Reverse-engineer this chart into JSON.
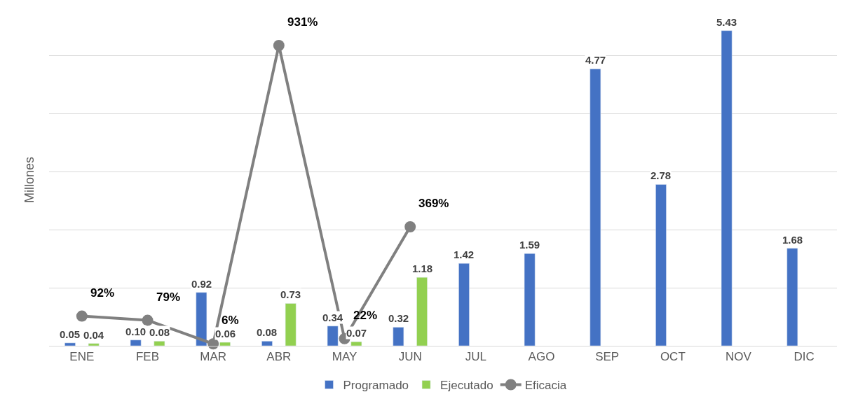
{
  "chart_data": {
    "type": "bar",
    "ylabel": "Millones",
    "categories": [
      "ENE",
      "FEB",
      "MAR",
      "ABR",
      "MAY",
      "JUN",
      "JUL",
      "AGO",
      "SEP",
      "OCT",
      "NOV",
      "DIC"
    ],
    "series": [
      {
        "name": "Programado",
        "color": "#4472c4",
        "values": [
          0.05,
          0.1,
          0.92,
          0.08,
          0.34,
          0.32,
          1.42,
          1.59,
          4.77,
          2.78,
          5.43,
          1.68
        ],
        "value_labels": [
          "0.05",
          "0.10",
          "0.92",
          "0.08",
          "0.34",
          "0.32",
          "1.42",
          "1.59",
          "4.77",
          "2.78",
          "5.43",
          "1.68"
        ]
      },
      {
        "name": "Ejecutado",
        "color": "#92d050",
        "values": [
          0.04,
          0.08,
          0.06,
          0.73,
          0.07,
          1.18,
          null,
          null,
          null,
          null,
          null,
          null
        ],
        "value_labels": [
          "0.04",
          "0.08",
          "0.06",
          "0.73",
          "0.07",
          "1.18",
          null,
          null,
          null,
          null,
          null,
          null
        ]
      },
      {
        "name": "Eficacia",
        "type": "line",
        "axis": "y2",
        "color": "#808080",
        "marker": "circle",
        "values": [
          92,
          79,
          6,
          931,
          22,
          369,
          null,
          null,
          null,
          null,
          null,
          null
        ],
        "value_labels": [
          "92%",
          "79%",
          "6%",
          "931%",
          "22%",
          "369%",
          null,
          null,
          null,
          null,
          null,
          null
        ]
      }
    ],
    "grid": "y",
    "legend": "bottom",
    "tick_labels": "x"
  }
}
